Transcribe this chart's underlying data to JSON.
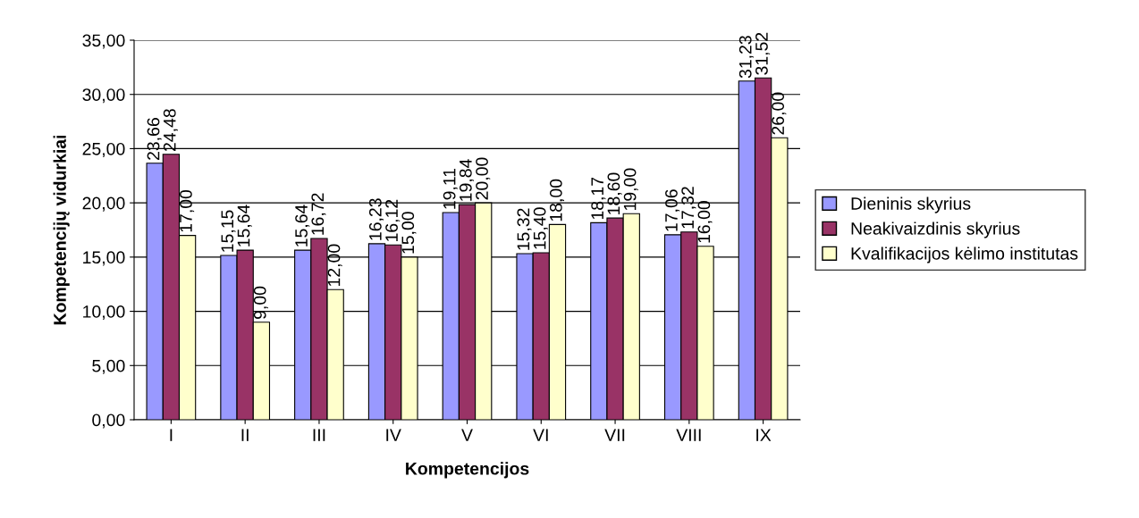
{
  "chart_data": {
    "type": "bar",
    "xlabel": "Kompetencijos",
    "ylabel": "Kompetencijų vidurkiai",
    "categories": [
      "I",
      "II",
      "III",
      "IV",
      "V",
      "VI",
      "VII",
      "VIII",
      "IX"
    ],
    "series": [
      {
        "name": "Dieninis skyrius",
        "color": "#9999ff",
        "values": [
          23.66,
          15.15,
          15.64,
          16.23,
          19.11,
          15.32,
          18.17,
          17.06,
          31.23
        ],
        "value_labels": [
          "23,66",
          "15,15",
          "15,64",
          "16,23",
          "19,11",
          "15,32",
          "18,17",
          "17,06",
          "31,23"
        ]
      },
      {
        "name": "Neakivaizdinis skyrius",
        "color": "#993366",
        "values": [
          24.48,
          15.64,
          16.72,
          16.12,
          19.84,
          15.4,
          18.6,
          17.32,
          31.52
        ],
        "value_labels": [
          "24,48",
          "15,64",
          "16,72",
          "16,12",
          "19,84",
          "15,40",
          "18,60",
          "17,32",
          "31,52"
        ]
      },
      {
        "name": "Kvalifikacijos kėlimo institutas",
        "color": "#ffffcc",
        "values": [
          17.0,
          9.0,
          12.0,
          15.0,
          20.0,
          18.0,
          19.0,
          16.0,
          26.0
        ],
        "value_labels": [
          "17,00",
          "9,00",
          "12,00",
          "15,00",
          "20,00",
          "18,00",
          "19,00",
          "16,00",
          "26,00"
        ]
      }
    ],
    "ylim": [
      0,
      35
    ],
    "yticks": [
      {
        "value": 0,
        "label": "0,00"
      },
      {
        "value": 5,
        "label": "5,00"
      },
      {
        "value": 10,
        "label": "10,00"
      },
      {
        "value": 15,
        "label": "15,00"
      },
      {
        "value": 20,
        "label": "20,00"
      },
      {
        "value": 25,
        "label": "25,00"
      },
      {
        "value": 30,
        "label": "30,00"
      },
      {
        "value": 35,
        "label": "35,00"
      }
    ],
    "grid": "y",
    "legend": "right"
  }
}
